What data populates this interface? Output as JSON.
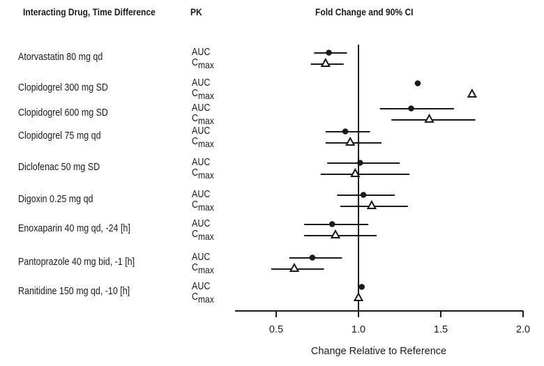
{
  "chart_data": {
    "type": "forest",
    "title": "Fold Change and 90% CI",
    "column_headers": {
      "drug": "Interacting Drug, Time Difference",
      "pk": "PK",
      "plot": "Fold Change and 90% CI"
    },
    "xlabel": "Change Relative to Reference",
    "xlim": [
      0.25,
      2.0
    ],
    "xticks": [
      0.5,
      1.0,
      1.5,
      2.0
    ],
    "xtick_labels": [
      "0.5",
      "1.0",
      "1.5",
      "2.0"
    ],
    "reference_line": 1.0,
    "legend": {
      "AUC": "filled circle",
      "Cmax": "open triangle"
    },
    "rows": [
      {
        "drug": "Atorvastatin 80 mg qd",
        "auc": {
          "label": "AUC",
          "est": 0.82,
          "lo": 0.73,
          "hi": 0.93
        },
        "cmax": {
          "label": "C",
          "sub": "max",
          "est": 0.8,
          "lo": 0.71,
          "hi": 0.91
        }
      },
      {
        "drug": "Clopidogrel 300 mg SD",
        "auc": {
          "label": "AUC",
          "est": 1.36,
          "lo": null,
          "hi": null
        },
        "cmax": {
          "label": "C",
          "sub": "max",
          "est": 1.69,
          "lo": null,
          "hi": null
        }
      },
      {
        "drug": "Clopidogrel 600 mg SD",
        "auc": {
          "label": "AUC",
          "est": 1.32,
          "lo": 1.13,
          "hi": 1.58
        },
        "cmax": {
          "label": "C",
          "sub": "max",
          "est": 1.43,
          "lo": 1.2,
          "hi": 1.71
        }
      },
      {
        "drug": "Clopidogrel 75 mg qd",
        "auc": {
          "label": "AUC",
          "est": 0.92,
          "lo": 0.8,
          "hi": 1.07
        },
        "cmax": {
          "label": "C",
          "sub": "max",
          "est": 0.95,
          "lo": 0.8,
          "hi": 1.14
        }
      },
      {
        "drug": "Diclofenac 50 mg SD",
        "auc": {
          "label": "AUC",
          "est": 1.01,
          "lo": 0.81,
          "hi": 1.25
        },
        "cmax": {
          "label": "C",
          "sub": "max",
          "est": 0.98,
          "lo": 0.77,
          "hi": 1.31
        }
      },
      {
        "drug": "Digoxin 0.25 mg qd",
        "auc": {
          "label": "AUC",
          "est": 1.03,
          "lo": 0.87,
          "hi": 1.22
        },
        "cmax": {
          "label": "C",
          "sub": "max",
          "est": 1.08,
          "lo": 0.89,
          "hi": 1.3
        }
      },
      {
        "drug": "Enoxaparin 40 mg qd, -24 [h]",
        "auc": {
          "label": "AUC",
          "est": 0.84,
          "lo": 0.67,
          "hi": 1.06
        },
        "cmax": {
          "label": "C",
          "sub": "max",
          "est": 0.86,
          "lo": 0.67,
          "hi": 1.11
        }
      },
      {
        "drug": "Pantoprazole 40 mg bid, -1 [h]",
        "auc": {
          "label": "AUC",
          "est": 0.72,
          "lo": 0.58,
          "hi": 0.9
        },
        "cmax": {
          "label": "C",
          "sub": "max",
          "est": 0.61,
          "lo": 0.47,
          "hi": 0.79
        }
      },
      {
        "drug": "Ranitidine 150 mg qd, -10 [h]",
        "auc": {
          "label": "AUC",
          "est": 1.02,
          "lo": null,
          "hi": null
        },
        "cmax": {
          "label": "C",
          "sub": "max",
          "est": 1.0,
          "lo": null,
          "hi": null
        }
      }
    ]
  }
}
